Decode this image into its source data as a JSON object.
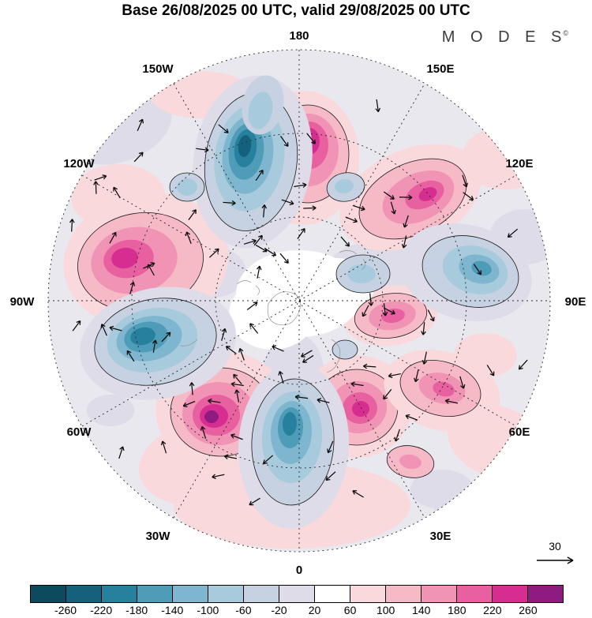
{
  "title": "Base 26/08/2025 00 UTC, valid 29/08/2025 00 UTC",
  "brand": {
    "text": "M O D E S",
    "sup": "©"
  },
  "map": {
    "lon_labels": [
      "180",
      "150W",
      "150E",
      "120W",
      "120E",
      "90W",
      "90E",
      "60W",
      "60E",
      "30W",
      "30E",
      "0"
    ],
    "ref_arrow_label": "30"
  },
  "colorbar": {
    "ticks": [
      "-260",
      "-220",
      "-180",
      "-140",
      "-100",
      "-60",
      "-20",
      "20",
      "60",
      "100",
      "140",
      "180",
      "220",
      "260"
    ],
    "colors": [
      "#0c4a5e",
      "#15607b",
      "#27809d",
      "#4e9cb8",
      "#7fb6cf",
      "#a8cadd",
      "#c6d2e2",
      "#dddce8",
      "#ffffff",
      "#f9d9dc",
      "#f6b9c6",
      "#f093b4",
      "#e8609f",
      "#d62e90",
      "#8f1a80"
    ]
  },
  "chart_data": {
    "type": "heatmap",
    "title": "Base 26/08/2025 00 UTC, valid 29/08/2025 00 UTC",
    "base_time": "26/08/2025 00 UTC",
    "valid_time": "29/08/2025 00 UTC",
    "projection": "north-polar-stereographic",
    "meridian_labels": [
      "180",
      "150W",
      "150E",
      "120W",
      "120E",
      "90W",
      "90E",
      "60W",
      "60E",
      "30W",
      "30E",
      "0"
    ],
    "contour_levels": [
      -260,
      -220,
      -180,
      -140,
      -100,
      -60,
      -20,
      20,
      60,
      100,
      140,
      180,
      220,
      260
    ],
    "colorbar_colors": [
      "#0c4a5e",
      "#15607b",
      "#27809d",
      "#4e9cb8",
      "#7fb6cf",
      "#a8cadd",
      "#c6d2e2",
      "#dddce8",
      "#ffffff",
      "#f9d9dc",
      "#f6b9c6",
      "#f093b4",
      "#e8609f",
      "#d62e90",
      "#8f1a80"
    ],
    "vector_reference": 30,
    "legend_position": "bottom",
    "description": "Filled anomaly contours (blue negative, pink/magenta positive) with wind vector arrows over Northern Hemisphere polar projection; MODES product"
  }
}
